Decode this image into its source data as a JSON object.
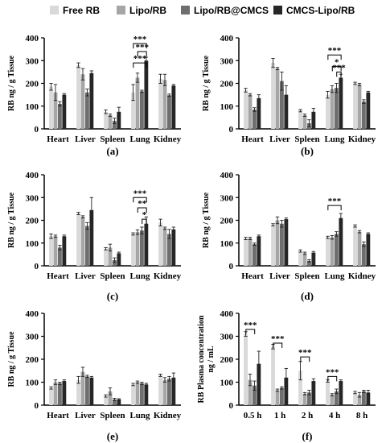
{
  "legend": {
    "entries": [
      {
        "label": "Free RB",
        "color": "#d9d9d9"
      },
      {
        "label": "Lipo/RB",
        "color": "#a6a6a6"
      },
      {
        "label": "Lipo/RB@CMCS",
        "color": "#6e6e6e"
      },
      {
        "label": "CMCS-Lipo/RB",
        "color": "#262626"
      }
    ]
  },
  "chart_data": [
    {
      "type": "bar",
      "panel_label": "(a)",
      "ylabel": "RB ng / g Tissue",
      "ylim": [
        0,
        400
      ],
      "yticks": [
        0,
        100,
        200,
        300,
        400
      ],
      "categories": [
        "Heart",
        "Liver",
        "Spleen",
        "Lung",
        "Kidney"
      ],
      "series": [
        {
          "name": "Free RB",
          "values": [
            185,
            280,
            75,
            160,
            220
          ],
          "errors": [
            15,
            10,
            8,
            35,
            20
          ]
        },
        {
          "name": "Lipo/RB",
          "values": [
            160,
            240,
            60,
            225,
            215
          ],
          "errors": [
            35,
            25,
            5,
            20,
            25
          ]
        },
        {
          "name": "Lipo/RB@CMCS",
          "values": [
            110,
            160,
            35,
            165,
            148
          ],
          "errors": [
            10,
            15,
            12,
            5,
            5
          ]
        },
        {
          "name": "CMCS-Lipo/RB",
          "values": [
            150,
            245,
            75,
            300,
            190
          ],
          "errors": [
            5,
            10,
            20,
            15,
            5
          ]
        }
      ],
      "significance": [
        "***",
        "***",
        "***"
      ]
    },
    {
      "type": "bar",
      "panel_label": "(b)",
      "ylabel": "RB ng / g Tissue",
      "ylim": [
        0,
        400
      ],
      "yticks": [
        0,
        100,
        200,
        300,
        400
      ],
      "categories": [
        "Heart",
        "Liver",
        "Spleen",
        "Lung",
        "Kidney"
      ],
      "series": [
        {
          "name": "Free RB",
          "values": [
            170,
            290,
            80,
            150,
            200
          ],
          "errors": [
            8,
            20,
            5,
            15,
            5
          ]
        },
        {
          "name": "Lipo/RB",
          "values": [
            150,
            265,
            60,
            175,
            195
          ],
          "errors": [
            5,
            5,
            5,
            15,
            5
          ]
        },
        {
          "name": "Lipo/RB@CMCS",
          "values": [
            85,
            210,
            25,
            180,
            120
          ],
          "errors": [
            8,
            40,
            15,
            20,
            8
          ]
        },
        {
          "name": "CMCS-Lipo/RB",
          "values": [
            135,
            150,
            75,
            225,
            160
          ],
          "errors": [
            15,
            40,
            15,
            15,
            5
          ]
        }
      ],
      "significance": [
        "***",
        "*",
        "***"
      ]
    },
    {
      "type": "bar",
      "panel_label": "(c)",
      "ylabel": "RB ng / g Tissue",
      "ylim": [
        0,
        400
      ],
      "yticks": [
        0,
        100,
        200,
        300,
        400
      ],
      "categories": [
        "Heart",
        "Liver",
        "Spleen",
        "Lung",
        "Kidney"
      ],
      "series": [
        {
          "name": "Free RB",
          "values": [
            130,
            230,
            75,
            140,
            190
          ],
          "errors": [
            10,
            5,
            5,
            5,
            15
          ]
        },
        {
          "name": "Lipo/RB",
          "values": [
            130,
            215,
            80,
            148,
            165
          ],
          "errors": [
            5,
            5,
            15,
            10,
            5
          ]
        },
        {
          "name": "Lipo/RB@CMCS",
          "values": [
            80,
            175,
            25,
            155,
            140
          ],
          "errors": [
            10,
            15,
            10,
            15,
            20
          ]
        },
        {
          "name": "CMCS-Lipo/RB",
          "values": [
            130,
            245,
            55,
            185,
            160
          ],
          "errors": [
            5,
            55,
            5,
            30,
            10
          ]
        }
      ],
      "significance": [
        "***",
        "**",
        "*"
      ]
    },
    {
      "type": "bar",
      "panel_label": "(d)",
      "ylabel": "RB ng / g Tissue",
      "ylim": [
        0,
        400
      ],
      "yticks": [
        0,
        100,
        200,
        300,
        400
      ],
      "categories": [
        "Heart",
        "Liver",
        "Spleen",
        "Lung",
        "Kidney"
      ],
      "series": [
        {
          "name": "Free RB",
          "values": [
            120,
            180,
            65,
            125,
            175
          ],
          "errors": [
            5,
            5,
            5,
            5,
            5
          ]
        },
        {
          "name": "Lipo/RB",
          "values": [
            120,
            200,
            55,
            125,
            150
          ],
          "errors": [
            5,
            15,
            5,
            8,
            5
          ]
        },
        {
          "name": "Lipo/RB@CMCS",
          "values": [
            95,
            185,
            22,
            140,
            95
          ],
          "errors": [
            5,
            15,
            5,
            10,
            10
          ]
        },
        {
          "name": "CMCS-Lipo/RB",
          "values": [
            130,
            205,
            58,
            210,
            140
          ],
          "errors": [
            5,
            5,
            5,
            20,
            5
          ]
        }
      ],
      "significance": [
        "***"
      ]
    },
    {
      "type": "bar",
      "panel_label": "(e)",
      "ylabel": "RB ng / g Tissue",
      "ylim": [
        0,
        400
      ],
      "yticks": [
        0,
        100,
        200,
        300,
        400
      ],
      "categories": [
        "Heart",
        "Liver",
        "Spleen",
        "Lung",
        "Kidney"
      ],
      "series": [
        {
          "name": "Free RB",
          "values": [
            75,
            110,
            40,
            90,
            130
          ],
          "errors": [
            5,
            15,
            5,
            5,
            5
          ]
        },
        {
          "name": "Lipo/RB",
          "values": [
            100,
            145,
            60,
            100,
            110
          ],
          "errors": [
            10,
            20,
            15,
            5,
            10
          ]
        },
        {
          "name": "Lipo/RB@CMCS",
          "values": [
            95,
            125,
            25,
            95,
            115
          ],
          "errors": [
            5,
            5,
            5,
            5,
            10
          ]
        },
        {
          "name": "CMCS-Lipo/RB",
          "values": [
            105,
            120,
            25,
            90,
            120
          ],
          "errors": [
            5,
            5,
            3,
            5,
            20
          ]
        }
      ],
      "significance": []
    },
    {
      "type": "bar",
      "panel_label": "(f)",
      "ylabel": "RB Plasma concentration",
      "ylabel2": "ng / mL",
      "ylim": [
        0,
        400
      ],
      "yticks": [
        0,
        100,
        200,
        300,
        400
      ],
      "categories": [
        "0.5 h",
        "1 h",
        "2 h",
        "4 h",
        "8 h"
      ],
      "series": [
        {
          "name": "Free RB",
          "values": [
            310,
            255,
            150,
            105,
            55
          ],
          "errors": [
            10,
            10,
            40,
            5,
            5
          ]
        },
        {
          "name": "Lipo/RB",
          "values": [
            110,
            65,
            50,
            45,
            45
          ],
          "errors": [
            25,
            5,
            5,
            5,
            10
          ]
        },
        {
          "name": "Lipo/RB@CMCS",
          "values": [
            85,
            75,
            55,
            60,
            60
          ],
          "errors": [
            20,
            5,
            10,
            10,
            5
          ]
        },
        {
          "name": "CMCS-Lipo/RB",
          "values": [
            180,
            120,
            105,
            105,
            55
          ],
          "errors": [
            55,
            40,
            10,
            5,
            10
          ]
        }
      ],
      "significance": [
        "***",
        "***",
        "***",
        "***"
      ]
    }
  ]
}
